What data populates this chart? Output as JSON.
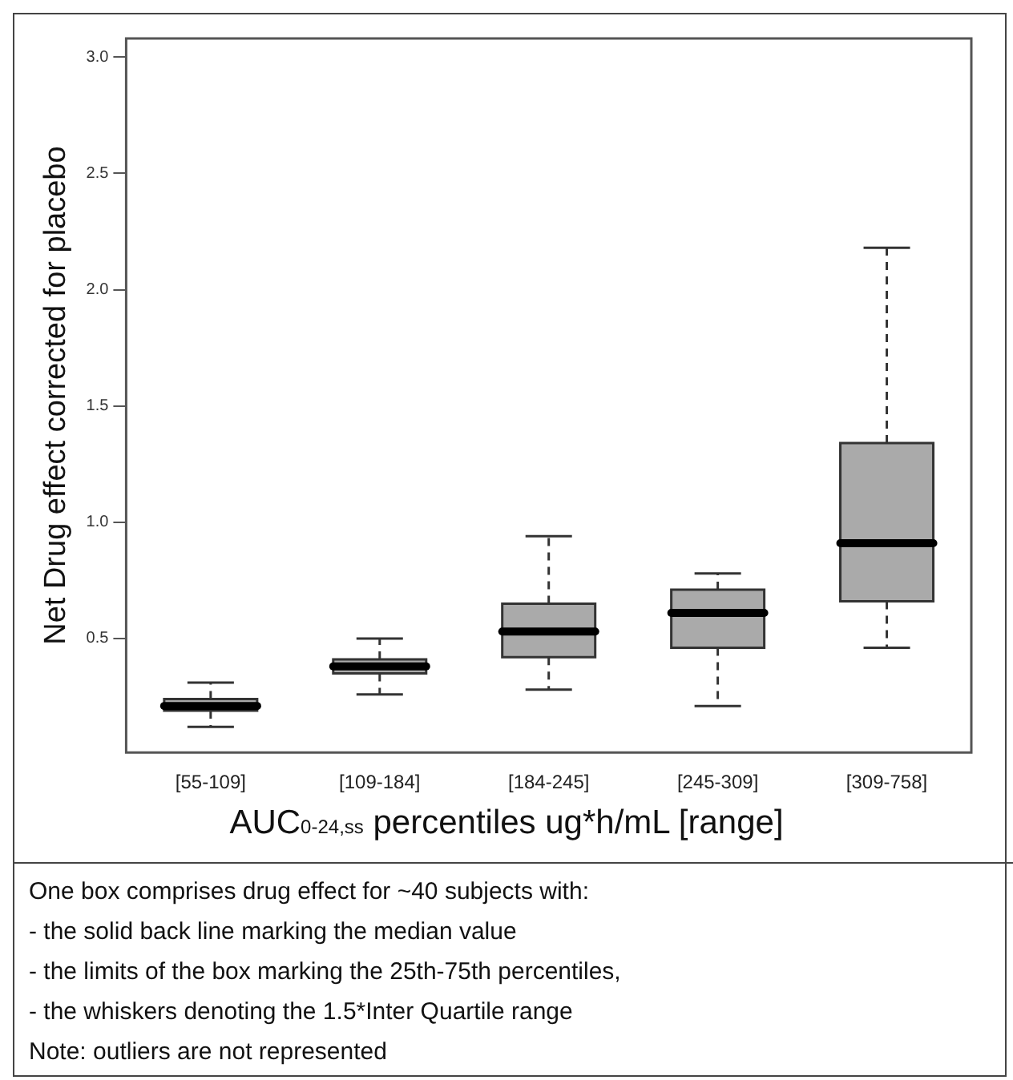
{
  "chart_data": {
    "type": "box",
    "xlabel": "AUC$_{0-24,ss}$ percentiles ug*h/mL [range]",
    "ylabel": "Net Drug effect corrected for placebo",
    "categories": [
      "[55-109]",
      "[109-184]",
      "[184-245]",
      "[245-309]",
      "[309-758]"
    ],
    "color": "#aaaaaa",
    "boxes": [
      {
        "low": 0.12,
        "q1": 0.19,
        "median": 0.21,
        "q3": 0.24,
        "high": 0.31
      },
      {
        "low": 0.26,
        "q1": 0.35,
        "median": 0.38,
        "q3": 0.41,
        "high": 0.5
      },
      {
        "low": 0.28,
        "q1": 0.42,
        "median": 0.53,
        "q3": 0.65,
        "high": 0.94
      },
      {
        "low": 0.21,
        "q1": 0.46,
        "median": 0.61,
        "q3": 0.71,
        "high": 0.78
      },
      {
        "low": 0.46,
        "q1": 0.66,
        "median": 0.91,
        "q3": 1.34,
        "high": 2.18
      }
    ],
    "ylim": [
      0.01,
      3.08
    ],
    "yticks": [
      0.5,
      {
        "value": 1,
        "label": "1.0"
      },
      1.5,
      {
        "value": 2,
        "label": "2.0"
      },
      2.5,
      {
        "value": 3,
        "label": "3.0"
      }
    ],
    "grid": false,
    "legend": false,
    "annotations": [
      "One box comprises drug effect for ~40 subjects with:",
      "- the solid back line marking the median value",
      "- the limits of the box marking the 25th-75th percentiles,",
      "- the whiskers denoting the 1.5*Inter Quartile range",
      "Note: outliers are not represented"
    ]
  }
}
